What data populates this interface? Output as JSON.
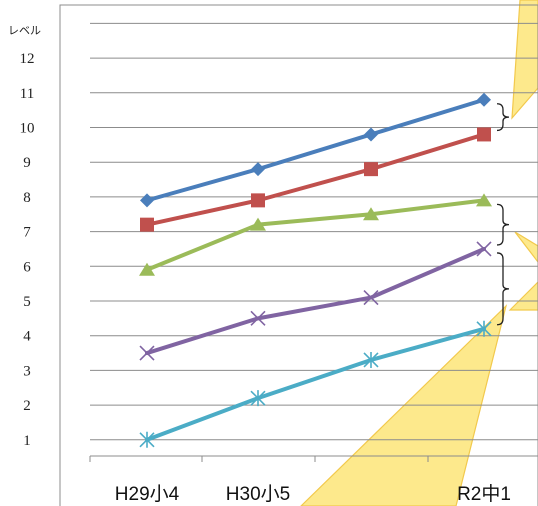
{
  "chart_data": {
    "type": "line",
    "ylabel": "レベル",
    "ylim": [
      0,
      13
    ],
    "yticks": [
      "1",
      "2",
      "3",
      "4",
      "5",
      "6",
      "7",
      "8",
      "9",
      "10",
      "11",
      "12"
    ],
    "categories": [
      "H29小4",
      "H30小5",
      "",
      "R2中1"
    ],
    "series": [
      {
        "values": [
          7.9,
          8.8,
          9.8,
          10.8
        ],
        "color": "#4a7ebb",
        "marker": "diamond"
      },
      {
        "values": [
          7.2,
          7.9,
          8.8,
          9.8
        ],
        "color": "#c0504d",
        "marker": "square"
      },
      {
        "values": [
          5.9,
          7.2,
          7.5,
          7.9
        ],
        "color": "#9bbb59",
        "marker": "triangle"
      },
      {
        "values": [
          3.5,
          4.5,
          5.1,
          6.5
        ],
        "color": "#8064a2",
        "marker": "x"
      },
      {
        "values": [
          1.0,
          2.2,
          3.3,
          4.2
        ],
        "color": "#4bacc6",
        "marker": "star"
      }
    ],
    "grid": true,
    "legend": "none"
  },
  "decor": {
    "callout_fill": "#fde98c",
    "callout_stroke": "#f2c94c"
  }
}
